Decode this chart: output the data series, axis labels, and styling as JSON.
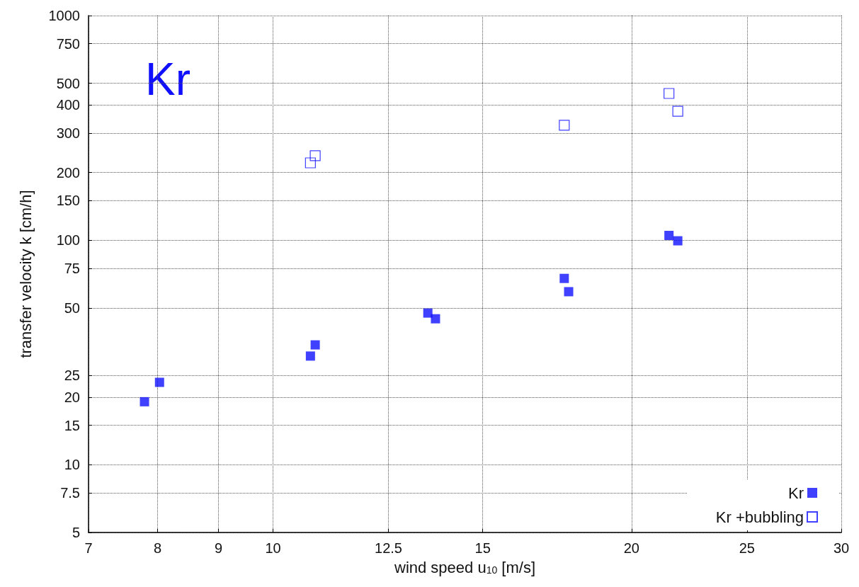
{
  "chart_data": {
    "type": "scatter",
    "xlabel": "wind speed u$_{10}$ [m/s]",
    "ylabel": "transfer velocity k [cm/h]",
    "annotations": [
      "Kr"
    ],
    "series": [
      {
        "name": "Kr",
        "color": "#1010ff",
        "marker": "square",
        "x": [
          7.8,
          8.03,
          10.75,
          10.85,
          13.49,
          13.69,
          17.56,
          17.71,
          21.5,
          21.87
        ],
        "values": [
          19.1,
          23.3,
          30.5,
          34.2,
          47.4,
          44.7,
          67.6,
          59,
          105,
          99.4
        ]
      },
      {
        "name": "Kr +bubbling",
        "color": "#1010ff",
        "marker": "square",
        "x": [
          10.75,
          10.85,
          17.56,
          21.5,
          21.87
        ],
        "values": [
          221,
          238,
          325,
          450,
          375
        ]
      }
    ],
    "log": "xy",
    "xlim": [
      7,
      30
    ],
    "xticks": [
      7,
      8,
      9,
      10,
      12.5,
      15,
      20,
      25,
      30
    ],
    "ylim": [
      5,
      1000
    ],
    "yticks": [
      5,
      7.5,
      10,
      15,
      20,
      25,
      50,
      75,
      100,
      150,
      200,
      300,
      400,
      500,
      750,
      1000
    ],
    "grid": true,
    "legend": "bottom right"
  }
}
